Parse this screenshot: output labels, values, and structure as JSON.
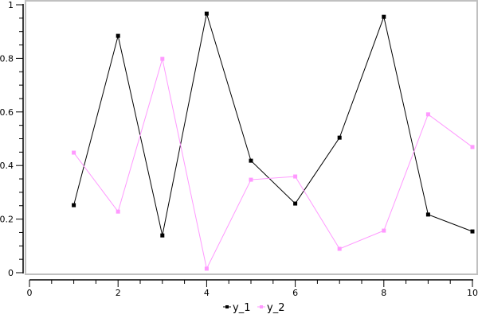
{
  "chart_data": {
    "type": "line",
    "title": "",
    "xlabel": "",
    "ylabel": "",
    "xlim": [
      0,
      10
    ],
    "ylim": [
      0,
      1
    ],
    "grid": false,
    "legend_position": "bottom-center",
    "x_ticks": [
      "0",
      "2",
      "4",
      "6",
      "8",
      "10"
    ],
    "y_ticks": [
      "0",
      "0.2",
      "0.4",
      "0.6",
      "0.8",
      "1"
    ],
    "x": [
      1,
      2,
      3,
      4,
      5,
      6,
      7,
      8,
      9,
      10
    ],
    "series": [
      {
        "name": "y_1",
        "color": "#000000",
        "values": [
          0.252,
          0.884,
          0.139,
          0.967,
          0.418,
          0.258,
          0.504,
          0.955,
          0.217,
          0.154
        ]
      },
      {
        "name": "y_2",
        "color": "#ff99ff",
        "values": [
          0.448,
          0.228,
          0.798,
          0.015,
          0.347,
          0.359,
          0.089,
          0.157,
          0.591,
          0.469
        ]
      }
    ]
  }
}
